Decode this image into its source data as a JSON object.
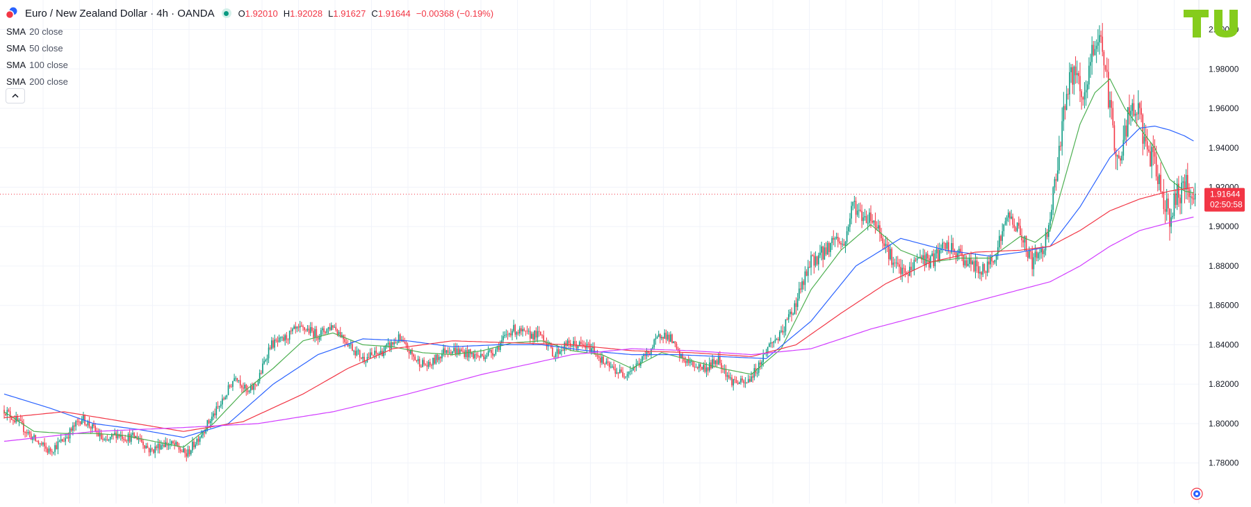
{
  "header": {
    "title": "Euro / New Zealand Dollar · 4h · OANDA",
    "open_label": "O",
    "open": "1.92010",
    "high_label": "H",
    "high": "1.92028",
    "low_label": "L",
    "low": "1.91627",
    "close_label": "C",
    "close": "1.91644",
    "change": "−0.00368 (−0.19%)"
  },
  "legend": [
    {
      "name": "SMA",
      "params": "20 close",
      "color": "#4caf50"
    },
    {
      "name": "SMA",
      "params": "50 close",
      "color": "#2962ff"
    },
    {
      "name": "SMA",
      "params": "100 close",
      "color": "#f23645"
    },
    {
      "name": "SMA",
      "params": "200 close",
      "color": "#d13bff"
    }
  ],
  "collapse_icon": "chevron-up-icon",
  "colors": {
    "up": "#089981",
    "down": "#f23645",
    "sma20": "#4caf50",
    "sma50": "#2962ff",
    "sma100": "#f23645",
    "sma200": "#d13bff",
    "price_line": "#f23645"
  },
  "chart_data": {
    "type": "candlestick",
    "title": "Euro / New Zealand Dollar · 4h · OANDA",
    "ylim": [
      1.77,
      2.015
    ],
    "y_ticks": [
      "1.78000",
      "1.80000",
      "1.82000",
      "1.84000",
      "1.86000",
      "1.88000",
      "1.90000",
      "1.92000",
      "1.94000",
      "1.96000",
      "1.98000",
      "2.00000"
    ],
    "grid": true,
    "current_price": {
      "value": 1.91644,
      "label": "1.91644",
      "countdown": "02:50:58"
    },
    "price_path": [
      [
        0,
        1.807
      ],
      [
        10,
        1.8
      ],
      [
        20,
        1.792
      ],
      [
        30,
        1.786
      ],
      [
        40,
        1.792
      ],
      [
        52,
        1.803
      ],
      [
        60,
        1.797
      ],
      [
        68,
        1.79
      ],
      [
        75,
        1.795
      ],
      [
        82,
        1.793
      ],
      [
        90,
        1.793
      ],
      [
        98,
        1.786
      ],
      [
        106,
        1.79
      ],
      [
        114,
        1.789
      ],
      [
        122,
        1.784
      ],
      [
        130,
        1.793
      ],
      [
        138,
        1.802
      ],
      [
        146,
        1.811
      ],
      [
        155,
        1.825
      ],
      [
        163,
        1.815
      ],
      [
        170,
        1.822
      ],
      [
        178,
        1.84
      ],
      [
        186,
        1.842
      ],
      [
        194,
        1.847
      ],
      [
        202,
        1.848
      ],
      [
        210,
        1.845
      ],
      [
        220,
        1.85
      ],
      [
        230,
        1.841
      ],
      [
        240,
        1.833
      ],
      [
        252,
        1.836
      ],
      [
        264,
        1.843
      ],
      [
        276,
        1.832
      ],
      [
        284,
        1.829
      ],
      [
        296,
        1.838
      ],
      [
        308,
        1.836
      ],
      [
        318,
        1.834
      ],
      [
        328,
        1.837
      ],
      [
        340,
        1.848
      ],
      [
        350,
        1.845
      ],
      [
        360,
        1.845
      ],
      [
        368,
        1.835
      ],
      [
        376,
        1.84
      ],
      [
        384,
        1.84
      ],
      [
        394,
        1.838
      ],
      [
        402,
        1.83
      ],
      [
        414,
        1.825
      ],
      [
        424,
        1.83
      ],
      [
        432,
        1.837
      ],
      [
        440,
        1.846
      ],
      [
        446,
        1.843
      ],
      [
        452,
        1.834
      ],
      [
        460,
        1.83
      ],
      [
        470,
        1.828
      ],
      [
        478,
        1.833
      ],
      [
        486,
        1.822
      ],
      [
        496,
        1.82
      ],
      [
        504,
        1.828
      ],
      [
        512,
        1.84
      ],
      [
        520,
        1.845
      ],
      [
        530,
        1.862
      ],
      [
        540,
        1.882
      ],
      [
        550,
        1.888
      ],
      [
        556,
        1.895
      ],
      [
        562,
        1.89
      ],
      [
        568,
        1.912
      ],
      [
        574,
        1.905
      ],
      [
        580,
        1.905
      ],
      [
        586,
        1.898
      ],
      [
        596,
        1.88
      ],
      [
        604,
        1.875
      ],
      [
        612,
        1.885
      ],
      [
        620,
        1.882
      ],
      [
        630,
        1.89
      ],
      [
        640,
        1.885
      ],
      [
        648,
        1.88
      ],
      [
        656,
        1.877
      ],
      [
        664,
        1.888
      ],
      [
        672,
        1.906
      ],
      [
        680,
        1.897
      ],
      [
        688,
        1.882
      ],
      [
        696,
        1.89
      ],
      [
        702,
        1.915
      ],
      [
        710,
        1.965
      ],
      [
        716,
        1.98
      ],
      [
        722,
        1.96
      ],
      [
        728,
        1.988
      ],
      [
        734,
        1.998
      ],
      [
        740,
        1.96
      ],
      [
        746,
        1.93
      ],
      [
        752,
        1.955
      ],
      [
        758,
        1.96
      ],
      [
        764,
        1.942
      ],
      [
        770,
        1.93
      ],
      [
        776,
        1.915
      ],
      [
        780,
        1.905
      ],
      [
        786,
        1.918
      ],
      [
        792,
        1.92
      ],
      [
        797,
        1.91644
      ]
    ],
    "series": [
      {
        "name": "SMA 20 close",
        "values": [
          [
            0,
            1.806
          ],
          [
            20,
            1.796
          ],
          [
            40,
            1.795
          ],
          [
            60,
            1.795
          ],
          [
            80,
            1.794
          ],
          [
            100,
            1.791
          ],
          [
            120,
            1.788
          ],
          [
            140,
            1.8
          ],
          [
            160,
            1.816
          ],
          [
            180,
            1.828
          ],
          [
            200,
            1.842
          ],
          [
            220,
            1.846
          ],
          [
            240,
            1.84
          ],
          [
            260,
            1.839
          ],
          [
            280,
            1.836
          ],
          [
            300,
            1.835
          ],
          [
            320,
            1.837
          ],
          [
            340,
            1.841
          ],
          [
            360,
            1.842
          ],
          [
            380,
            1.837
          ],
          [
            400,
            1.835
          ],
          [
            420,
            1.828
          ],
          [
            440,
            1.836
          ],
          [
            460,
            1.832
          ],
          [
            480,
            1.828
          ],
          [
            500,
            1.825
          ],
          [
            520,
            1.838
          ],
          [
            540,
            1.868
          ],
          [
            560,
            1.888
          ],
          [
            580,
            1.901
          ],
          [
            600,
            1.888
          ],
          [
            620,
            1.882
          ],
          [
            640,
            1.884
          ],
          [
            660,
            1.884
          ],
          [
            680,
            1.895
          ],
          [
            690,
            1.892
          ],
          [
            700,
            1.898
          ],
          [
            710,
            1.925
          ],
          [
            720,
            1.952
          ],
          [
            730,
            1.968
          ],
          [
            740,
            1.975
          ],
          [
            750,
            1.96
          ],
          [
            760,
            1.95
          ],
          [
            770,
            1.94
          ],
          [
            780,
            1.924
          ],
          [
            790,
            1.918
          ],
          [
            797,
            1.917
          ]
        ]
      },
      {
        "name": "SMA 50 close",
        "values": [
          [
            0,
            1.815
          ],
          [
            30,
            1.808
          ],
          [
            60,
            1.8
          ],
          [
            90,
            1.797
          ],
          [
            120,
            1.793
          ],
          [
            150,
            1.8
          ],
          [
            180,
            1.82
          ],
          [
            210,
            1.835
          ],
          [
            240,
            1.843
          ],
          [
            270,
            1.842
          ],
          [
            300,
            1.839
          ],
          [
            330,
            1.84
          ],
          [
            360,
            1.84
          ],
          [
            390,
            1.837
          ],
          [
            420,
            1.835
          ],
          [
            450,
            1.835
          ],
          [
            480,
            1.834
          ],
          [
            510,
            1.833
          ],
          [
            540,
            1.852
          ],
          [
            570,
            1.88
          ],
          [
            600,
            1.894
          ],
          [
            630,
            1.888
          ],
          [
            660,
            1.885
          ],
          [
            680,
            1.887
          ],
          [
            700,
            1.89
          ],
          [
            720,
            1.91
          ],
          [
            740,
            1.935
          ],
          [
            760,
            1.95
          ],
          [
            770,
            1.951
          ],
          [
            780,
            1.949
          ],
          [
            790,
            1.946
          ],
          [
            797,
            1.943
          ]
        ]
      },
      {
        "name": "SMA 100 close",
        "values": [
          [
            0,
            1.803
          ],
          [
            40,
            1.806
          ],
          [
            80,
            1.801
          ],
          [
            120,
            1.796
          ],
          [
            160,
            1.801
          ],
          [
            200,
            1.815
          ],
          [
            230,
            1.828
          ],
          [
            260,
            1.838
          ],
          [
            300,
            1.842
          ],
          [
            340,
            1.841
          ],
          [
            380,
            1.84
          ],
          [
            420,
            1.837
          ],
          [
            460,
            1.836
          ],
          [
            500,
            1.834
          ],
          [
            530,
            1.84
          ],
          [
            560,
            1.856
          ],
          [
            590,
            1.871
          ],
          [
            620,
            1.882
          ],
          [
            650,
            1.887
          ],
          [
            680,
            1.888
          ],
          [
            700,
            1.89
          ],
          [
            720,
            1.898
          ],
          [
            740,
            1.908
          ],
          [
            760,
            1.914
          ],
          [
            780,
            1.918
          ],
          [
            797,
            1.92
          ]
        ]
      },
      {
        "name": "SMA 200 close",
        "values": [
          [
            0,
            1.791
          ],
          [
            60,
            1.796
          ],
          [
            120,
            1.798
          ],
          [
            170,
            1.8
          ],
          [
            220,
            1.806
          ],
          [
            270,
            1.815
          ],
          [
            320,
            1.825
          ],
          [
            380,
            1.835
          ],
          [
            420,
            1.838
          ],
          [
            460,
            1.837
          ],
          [
            500,
            1.835
          ],
          [
            540,
            1.838
          ],
          [
            580,
            1.848
          ],
          [
            620,
            1.856
          ],
          [
            660,
            1.864
          ],
          [
            700,
            1.872
          ],
          [
            720,
            1.88
          ],
          [
            740,
            1.89
          ],
          [
            760,
            1.898
          ],
          [
            780,
            1.902
          ],
          [
            797,
            1.905
          ]
        ]
      }
    ]
  }
}
